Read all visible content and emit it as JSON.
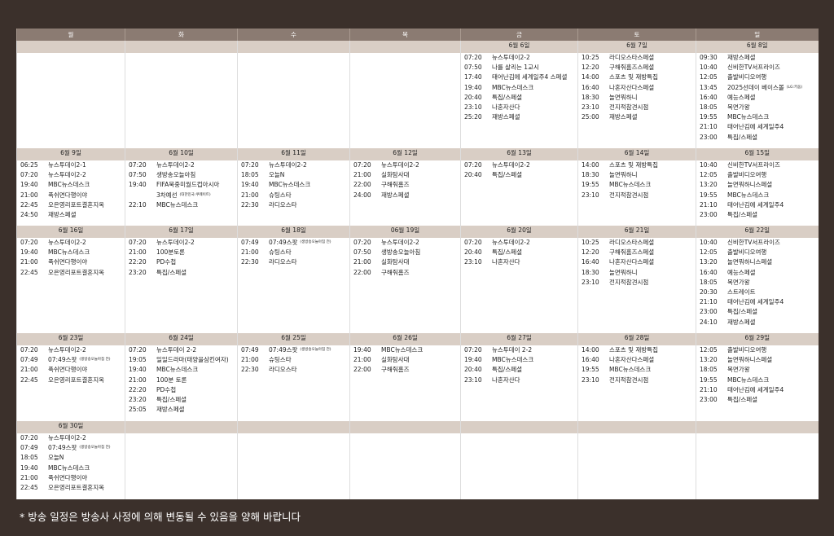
{
  "header": {
    "weekdays": [
      "월",
      "화",
      "수",
      "목",
      "금",
      "토",
      "일"
    ]
  },
  "weeks": [
    {
      "days": [
        null,
        null,
        null,
        null,
        {
          "date": "6월 6일",
          "items": [
            {
              "time": "07:20",
              "title": "뉴스투데이2-2"
            },
            {
              "time": "07:50",
              "title": "나를 살리는 1교시"
            },
            {
              "time": "17:40",
              "title": "태어난김에 세계일주4 스페셜"
            },
            {
              "time": "19:40",
              "title": "MBC뉴스데스크"
            },
            {
              "time": "20:40",
              "title": "특집/스페셜"
            },
            {
              "time": "23:10",
              "title": "나혼자산다"
            },
            {
              "time": "25:20",
              "title": "재방스페셜"
            }
          ]
        },
        {
          "date": "6월 7일",
          "items": [
            {
              "time": "10:25",
              "title": "라디오스타스페셜"
            },
            {
              "time": "12:20",
              "title": "구해줘홈즈스페셜"
            },
            {
              "time": "14:00",
              "title": "스포츠 및 재방특집"
            },
            {
              "time": "16:40",
              "title": "나혼자산다스페셜"
            },
            {
              "time": "18:30",
              "title": "놀면뭐하니"
            },
            {
              "time": "23:10",
              "title": "전지적참견시점"
            },
            {
              "time": "25:00",
              "title": "재방스페셜"
            }
          ]
        },
        {
          "date": "6월 8일",
          "items": [
            {
              "time": "09:30",
              "title": "재방스페셜"
            },
            {
              "time": "10:40",
              "title": "신비한TV서프라이즈"
            },
            {
              "time": "12:05",
              "title": "출발비디오여행"
            },
            {
              "time": "13:45",
              "title": "2025선데이 베이스볼",
              "note": "(LG:키움)"
            },
            {
              "time": "16:40",
              "title": "예능스페셜"
            },
            {
              "time": "18:05",
              "title": "복면가왕"
            },
            {
              "time": "19:55",
              "title": "MBC뉴스데스크"
            },
            {
              "time": "21:10",
              "title": "태어난김에 세계일주4"
            },
            {
              "time": "23:00",
              "title": "특집/스페셜"
            }
          ]
        }
      ]
    },
    {
      "days": [
        {
          "date": "6월 9일",
          "items": [
            {
              "time": "06:25",
              "title": "뉴스투데이2-1"
            },
            {
              "time": "07:20",
              "title": "뉴스투데이2-2"
            },
            {
              "time": "19:40",
              "title": "MBC뉴스데스크"
            },
            {
              "time": "21:00",
              "title": "푹쉬면다행이야"
            },
            {
              "time": "22:45",
              "title": "오은영리포트결혼지옥"
            },
            {
              "time": "24:50",
              "title": "재방스페셜"
            }
          ]
        },
        {
          "date": "6월 10일",
          "items": [
            {
              "time": "07:20",
              "title": "뉴스투데이2-2"
            },
            {
              "time": "07:50",
              "title": "생방송오늘아침"
            },
            {
              "time": "19:40",
              "title": "FIFA북중미월드컵아시아"
            },
            {
              "title": "3차예선",
              "note": "(대한민국:쿠웨이트)"
            },
            {
              "time": "22:10",
              "title": "MBC뉴스데스크"
            }
          ]
        },
        {
          "date": "6월 11일",
          "items": [
            {
              "time": "07:20",
              "title": "뉴스투데이2-2"
            },
            {
              "time": "18:05",
              "title": "오늘N"
            },
            {
              "time": "19:40",
              "title": "MBC뉴스데스크"
            },
            {
              "time": "21:00",
              "title": "슈팅스타"
            },
            {
              "time": "22:30",
              "title": "라디오스타"
            }
          ]
        },
        {
          "date": "6월 12일",
          "items": [
            {
              "time": "07:20",
              "title": "뉴스투데이2-2"
            },
            {
              "time": "21:00",
              "title": "실화탐사대"
            },
            {
              "time": "22:00",
              "title": "구해줘홈즈"
            },
            {
              "time": "24:00",
              "title": "재방스페셜"
            }
          ]
        },
        {
          "date": "6월 13일",
          "items": [
            {
              "time": "07:20",
              "title": "뉴스투데이2-2"
            },
            {
              "time": "20:40",
              "title": "특집/스페셜"
            }
          ]
        },
        {
          "date": "6월 14일",
          "items": [
            {
              "time": "14:00",
              "title": "스포츠 및 재방특집"
            },
            {
              "time": "18:30",
              "title": "놀면뭐하니"
            },
            {
              "time": "19:55",
              "title": "MBC뉴스데스크"
            },
            {
              "time": "23:10",
              "title": "전지적참견시점"
            }
          ]
        },
        {
          "date": "6월 15일",
          "items": [
            {
              "time": "10:40",
              "title": "신비한TV서프라이즈"
            },
            {
              "time": "12:05",
              "title": "출발비디오여행"
            },
            {
              "time": "13:20",
              "title": "놀면뭐하니스페셜"
            },
            {
              "time": "19:55",
              "title": "MBC뉴스데스크"
            },
            {
              "time": "21:10",
              "title": "태어난김에 세계일주4"
            },
            {
              "time": "23:00",
              "title": "특집/스페셜"
            }
          ]
        }
      ]
    },
    {
      "days": [
        {
          "date": "6월 16일",
          "items": [
            {
              "time": "07:20",
              "title": "뉴스투데이2-2"
            },
            {
              "time": "19:40",
              "title": "MBC뉴스데스크"
            },
            {
              "time": "21:00",
              "title": "푹쉬면다행이야"
            },
            {
              "time": "22:45",
              "title": "오은영리포트결혼지옥"
            }
          ]
        },
        {
          "date": "6월 17일",
          "items": [
            {
              "time": "07:20",
              "title": "뉴스투데이2-2"
            },
            {
              "time": "21:00",
              "title": "100분토론"
            },
            {
              "time": "22:20",
              "title": "PD수첩"
            },
            {
              "time": "23:20",
              "title": "특집/스페셜"
            }
          ]
        },
        {
          "date": "6월 18일",
          "items": [
            {
              "time": "07:49",
              "title": "07:49스팟",
              "note": "(생방송오늘아침 전)"
            },
            {
              "time": "21:00",
              "title": "슈팅스타"
            },
            {
              "time": "22:30",
              "title": "라디오스타"
            }
          ]
        },
        {
          "date": "06월 19일",
          "items": [
            {
              "time": "07:20",
              "title": "뉴스투데이2-2"
            },
            {
              "time": "07:50",
              "title": "생방송오늘아침"
            },
            {
              "time": "21:00",
              "title": "실화탐사대"
            },
            {
              "time": "22:00",
              "title": "구해줘홈즈"
            }
          ]
        },
        {
          "date": "6월 20일",
          "items": [
            {
              "time": "07:20",
              "title": "뉴스투데이2-2"
            },
            {
              "time": "20:40",
              "title": "특집/스페셜"
            },
            {
              "time": "23:10",
              "title": "나혼자산다"
            }
          ]
        },
        {
          "date": "6월 21일",
          "items": [
            {
              "time": "10:25",
              "title": "라디오스타스페셜"
            },
            {
              "time": "12:20",
              "title": "구해줘홈즈스페셜"
            },
            {
              "time": "16:40",
              "title": "나혼자산다스페셜"
            },
            {
              "time": "18:30",
              "title": "놀면뭐하니"
            },
            {
              "time": "23:10",
              "title": "전지적참견시점"
            }
          ]
        },
        {
          "date": "6월 22일",
          "items": [
            {
              "time": "10:40",
              "title": "신비한TV서프라이즈"
            },
            {
              "time": "12:05",
              "title": "출발비디오여행"
            },
            {
              "time": "13:20",
              "title": "놀면뭐하니스페셜"
            },
            {
              "time": "16:40",
              "title": "예능스페셜"
            },
            {
              "time": "18:05",
              "title": "복면가왕"
            },
            {
              "time": "20:30",
              "title": "스트레이트"
            },
            {
              "time": "21:10",
              "title": "태어난김에 세계일주4"
            },
            {
              "time": "23:00",
              "title": "특집/스페셜"
            },
            {
              "time": "24:10",
              "title": "재방스페셜"
            }
          ]
        }
      ]
    },
    {
      "days": [
        {
          "date": "6월 23일",
          "items": [
            {
              "time": "07:20",
              "title": "뉴스투데이2-2"
            },
            {
              "time": "07:49",
              "title": "07:49스팟",
              "note": "(생방송오늘아침 전)"
            },
            {
              "time": "21:00",
              "title": "푹쉬면다행이야"
            },
            {
              "time": "22:45",
              "title": "오은영리포트결혼지옥"
            }
          ]
        },
        {
          "date": "6월 24일",
          "items": [
            {
              "time": "07:20",
              "title": "뉴스투데이 2-2"
            },
            {
              "time": "19:05",
              "title": "일일드라마(태양을삼킨여자)"
            },
            {
              "time": "19:40",
              "title": "MBC뉴스데스크"
            },
            {
              "time": "21:00",
              "title": "100분 토론"
            },
            {
              "time": "22:20",
              "title": "PD수첩"
            },
            {
              "time": "23:20",
              "title": "특집/스페셜"
            },
            {
              "time": "25:05",
              "title": "재방스페셜"
            }
          ]
        },
        {
          "date": "6월 25일",
          "items": [
            {
              "time": "07:49",
              "title": "07:49스팟",
              "note": "(생방송오늘아침 전)"
            },
            {
              "time": "21:00",
              "title": "슈팅스타"
            },
            {
              "time": "22:30",
              "title": "라디오스타"
            }
          ]
        },
        {
          "date": "6월 26일",
          "items": [
            {
              "time": "19:40",
              "title": "MBC뉴스데스크"
            },
            {
              "time": "21:00",
              "title": "실화탐사대"
            },
            {
              "time": "22:00",
              "title": "구해줘홈즈"
            }
          ]
        },
        {
          "date": "6월 27일",
          "items": [
            {
              "time": "07:20",
              "title": "뉴스투데이 2-2"
            },
            {
              "time": "19:40",
              "title": "MBC뉴스데스크"
            },
            {
              "time": "20:40",
              "title": "특집/스페셜"
            },
            {
              "time": "23:10",
              "title": "나혼자산다"
            }
          ]
        },
        {
          "date": "6월 28일",
          "items": [
            {
              "time": "14:00",
              "title": "스포츠 및 재방특집"
            },
            {
              "time": "16:40",
              "title": "나혼자산다스페셜"
            },
            {
              "time": "19:55",
              "title": "MBC뉴스데스크"
            },
            {
              "time": "23:10",
              "title": "전지적참견시점"
            }
          ]
        },
        {
          "date": "6월 29일",
          "items": [
            {
              "time": "12:05",
              "title": "출발비디오여행"
            },
            {
              "time": "13:20",
              "title": "놀면뭐하니스페셜"
            },
            {
              "time": "18:05",
              "title": "복면가왕"
            },
            {
              "time": "19:55",
              "title": "MBC뉴스데스크"
            },
            {
              "time": "21:10",
              "title": "태어난김에 세계일주4"
            },
            {
              "time": "23:00",
              "title": "특집/스페셜"
            }
          ]
        }
      ]
    },
    {
      "days": [
        {
          "date": "6월 30일",
          "items": [
            {
              "time": "07:20",
              "title": "뉴스투데이2-2"
            },
            {
              "time": "07:49",
              "title": "07:49스팟",
              "note": "(생방송오늘아침 전)"
            },
            {
              "time": "18:05",
              "title": "오늘N"
            },
            {
              "time": "19:40",
              "title": "MBC뉴스데스크"
            },
            {
              "time": "21:00",
              "title": "푹쉬면다행이야"
            },
            {
              "time": "22:45",
              "title": "오은영리포트결혼지옥"
            }
          ]
        },
        null,
        null,
        null,
        null,
        null,
        null
      ]
    }
  ],
  "footer": {
    "note": "* 방송 일정은 방송사 사정에 의해 변동될 수 있음을 양해 바랍니다"
  }
}
